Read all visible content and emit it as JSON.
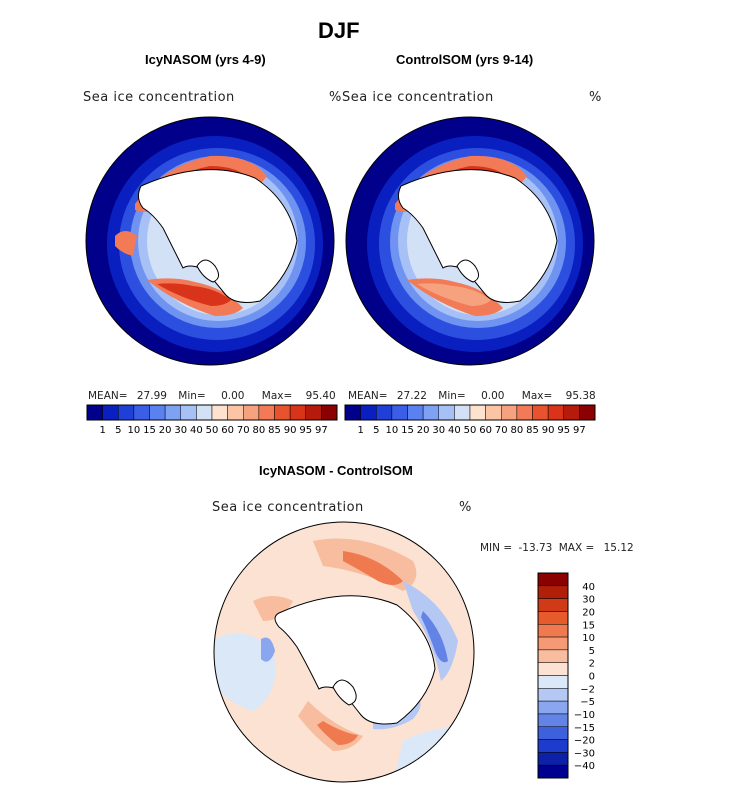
{
  "chart_data": {
    "type": "heatmap",
    "title": "DJF",
    "panels": [
      {
        "title": "IcyNASOM (yrs 4-9)",
        "variable": "Sea ice concentration",
        "unit": "%",
        "stats": {
          "mean_label": "MEAN=",
          "mean": "27.99",
          "min_label": "Min=",
          "min": "0.00",
          "max_label": "Max=",
          "max": "95.40"
        }
      },
      {
        "title": "ControlSOM (yrs 9-14)",
        "variable": "Sea ice concentration",
        "unit": "%",
        "stats": {
          "mean_label": "MEAN=",
          "mean": "27.22",
          "min_label": "Min=",
          "min": "0.00",
          "max_label": "Max=",
          "max": "95.38"
        }
      }
    ],
    "abs_colorbar": {
      "levels": [
        "1",
        "5",
        "10",
        "15",
        "20",
        "30",
        "40",
        "50",
        "60",
        "70",
        "80",
        "85",
        "90",
        "95",
        "97"
      ],
      "colors": [
        "#00008b",
        "#0a1fbf",
        "#1f3fd6",
        "#3a5ee6",
        "#5b80ef",
        "#7fa1f3",
        "#a7c0f6",
        "#d3e1f7",
        "#fde3cf",
        "#fbc4a5",
        "#f7a27e",
        "#f27a56",
        "#e8532f",
        "#d9341a",
        "#b51a0b",
        "#8b0000"
      ]
    },
    "diff_panel": {
      "title": "IcyNASOM - ControlSOM",
      "variable": "Sea ice concentration",
      "unit": "%",
      "min_label": "MIN =",
      "min": "-13.73",
      "max_label": "MAX =",
      "max": "15.12"
    },
    "diff_colorbar": {
      "levels": [
        "40",
        "30",
        "20",
        "15",
        "10",
        "5",
        "2",
        "0",
        "−2",
        "−5",
        "−10",
        "−15",
        "−20",
        "−30",
        "−40"
      ],
      "colors": [
        "#8b0000",
        "#b21f08",
        "#d13a16",
        "#e65a2c",
        "#f07a50",
        "#f59a74",
        "#f8bd9f",
        "#fbe2d2",
        "#dbe8f7",
        "#b4c8f3",
        "#8aa6ee",
        "#6384e6",
        "#3d60dc",
        "#1e3ccc",
        "#0c20a8",
        "#000090"
      ]
    }
  }
}
